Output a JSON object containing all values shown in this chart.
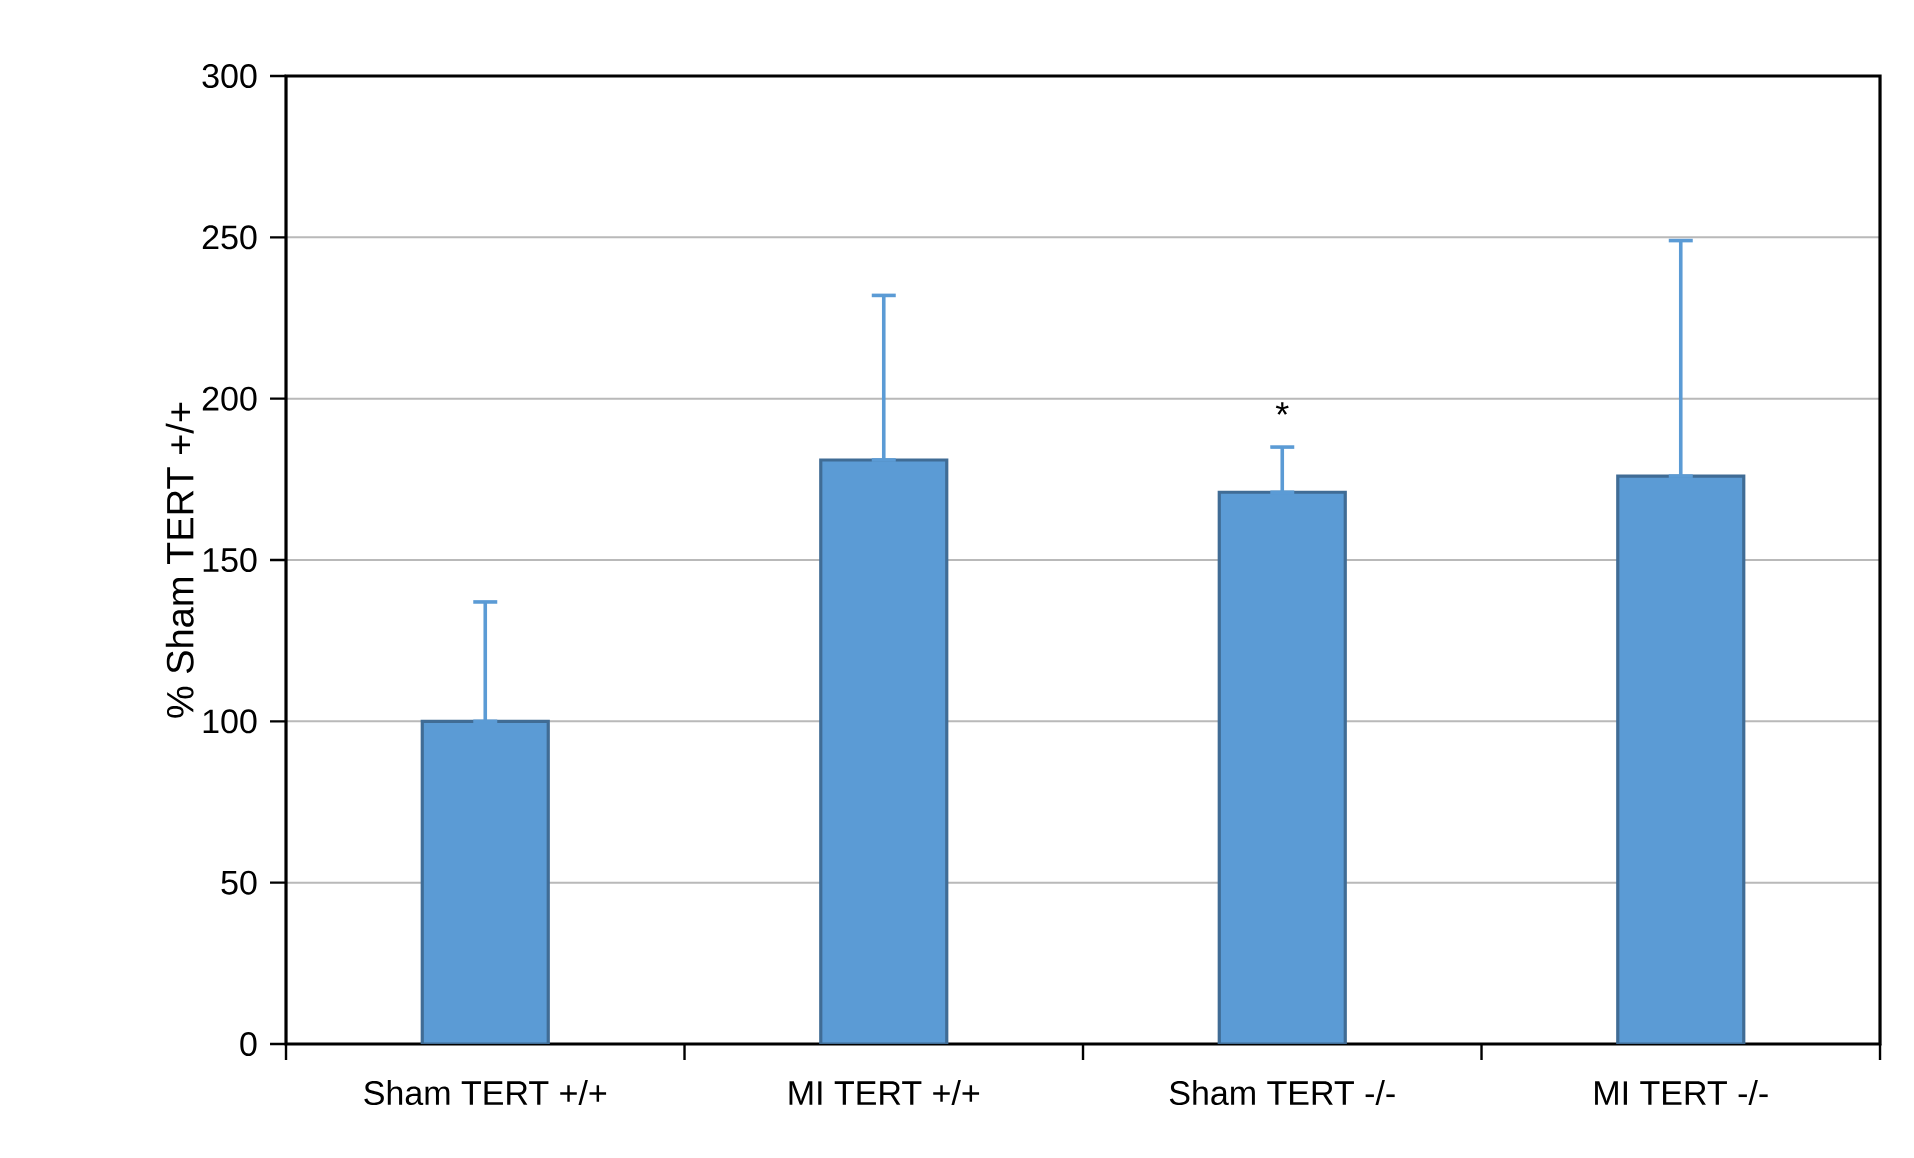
{
  "chart_data": {
    "type": "bar",
    "ylabel": "% Sham TERT +/+",
    "categories": [
      "Sham TERT +/+",
      "MI TERT +/+",
      "Sham TERT -/-",
      "MI TERT -/-"
    ],
    "values": [
      100,
      181,
      171,
      176
    ],
    "errors": [
      [
        100,
        137
      ],
      [
        181,
        232
      ],
      [
        171,
        185
      ],
      [
        176,
        249
      ]
    ],
    "color": "#5b9bd5",
    "ylim": [
      0,
      300
    ],
    "yticks": [
      0,
      50,
      100,
      150,
      200,
      250,
      300
    ],
    "grid": "y",
    "annotations": [
      {
        "text": "*",
        "x": "Sham TERT -/-",
        "y": 185
      }
    ]
  }
}
